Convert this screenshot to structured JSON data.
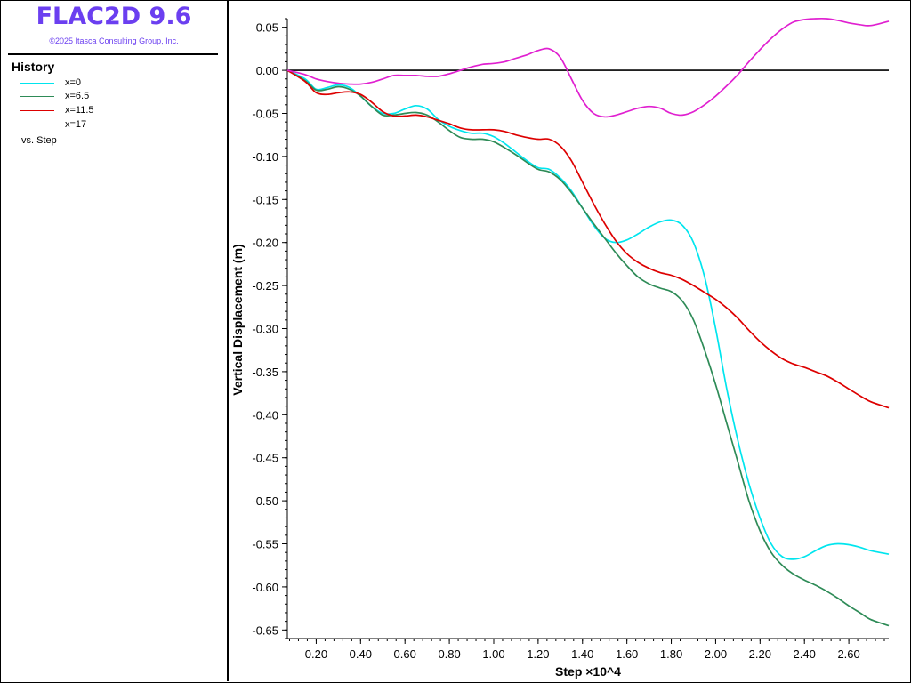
{
  "app": {
    "title": "FLAC2D 9.6",
    "copyright": "©2025 Itasca Consulting Group, Inc."
  },
  "legend": {
    "heading": "History",
    "items": [
      {
        "label": "x=0",
        "color": "#00e5ee"
      },
      {
        "label": "x=6.5",
        "color": "#2e8b57"
      },
      {
        "label": "x=11.5",
        "color": "#dd0000"
      },
      {
        "label": "x=17",
        "color": "#e020d0"
      }
    ],
    "vs_label": "vs. Step"
  },
  "chart_data": {
    "type": "line",
    "xlabel": "Step ×10^4",
    "ylabel": "Vertical Displacement (m)",
    "xlim": [
      0.07,
      2.78
    ],
    "ylim": [
      -0.66,
      0.06
    ],
    "xticks": [
      0.2,
      0.4,
      0.6,
      0.8,
      1.0,
      1.2,
      1.4,
      1.6,
      1.8,
      2.0,
      2.2,
      2.4,
      2.6
    ],
    "xtick_labels": [
      "0.20",
      "0.40",
      "0.60",
      "0.80",
      "1.00",
      "1.20",
      "1.40",
      "1.60",
      "1.80",
      "2.00",
      "2.20",
      "2.40",
      "2.60"
    ],
    "yticks": [
      0.05,
      0.0,
      -0.05,
      -0.1,
      -0.15,
      -0.2,
      -0.25,
      -0.3,
      -0.35,
      -0.4,
      -0.45,
      -0.5,
      -0.55,
      -0.6,
      -0.65
    ],
    "ytick_labels": [
      "0.05",
      "0.00",
      "-0.05",
      "-0.10",
      "-0.15",
      "-0.20",
      "-0.25",
      "-0.30",
      "-0.35",
      "-0.40",
      "-0.45",
      "-0.50",
      "-0.55",
      "-0.60",
      "-0.65"
    ],
    "zero_line": true,
    "grid": false,
    "series": [
      {
        "name": "x=0",
        "color": "#00e5ee",
        "x": [
          0.07,
          0.15,
          0.2,
          0.25,
          0.3,
          0.35,
          0.4,
          0.45,
          0.5,
          0.55,
          0.6,
          0.65,
          0.7,
          0.75,
          0.8,
          0.85,
          0.9,
          0.95,
          1.0,
          1.05,
          1.1,
          1.15,
          1.2,
          1.25,
          1.3,
          1.35,
          1.4,
          1.45,
          1.5,
          1.55,
          1.6,
          1.65,
          1.7,
          1.75,
          1.8,
          1.85,
          1.9,
          1.95,
          2.0,
          2.05,
          2.1,
          2.15,
          2.2,
          2.25,
          2.3,
          2.35,
          2.4,
          2.45,
          2.5,
          2.55,
          2.6,
          2.65,
          2.7,
          2.78
        ],
        "y": [
          0.0,
          -0.01,
          -0.022,
          -0.02,
          -0.017,
          -0.02,
          -0.03,
          -0.042,
          -0.05,
          -0.05,
          -0.045,
          -0.041,
          -0.045,
          -0.057,
          -0.065,
          -0.07,
          -0.073,
          -0.073,
          -0.077,
          -0.085,
          -0.095,
          -0.105,
          -0.113,
          -0.115,
          -0.125,
          -0.14,
          -0.16,
          -0.18,
          -0.195,
          -0.2,
          -0.197,
          -0.19,
          -0.182,
          -0.176,
          -0.174,
          -0.18,
          -0.2,
          -0.24,
          -0.3,
          -0.37,
          -0.43,
          -0.48,
          -0.52,
          -0.55,
          -0.565,
          -0.568,
          -0.565,
          -0.558,
          -0.552,
          -0.55,
          -0.551,
          -0.554,
          -0.558,
          -0.562
        ]
      },
      {
        "name": "x=6.5",
        "color": "#2e8b57",
        "x": [
          0.07,
          0.15,
          0.2,
          0.25,
          0.3,
          0.35,
          0.4,
          0.45,
          0.5,
          0.55,
          0.6,
          0.65,
          0.7,
          0.75,
          0.8,
          0.85,
          0.9,
          0.95,
          1.0,
          1.05,
          1.1,
          1.15,
          1.2,
          1.25,
          1.3,
          1.35,
          1.4,
          1.45,
          1.5,
          1.55,
          1.6,
          1.65,
          1.7,
          1.75,
          1.8,
          1.85,
          1.9,
          1.95,
          2.0,
          2.05,
          2.1,
          2.15,
          2.2,
          2.25,
          2.3,
          2.35,
          2.4,
          2.45,
          2.5,
          2.55,
          2.6,
          2.65,
          2.7,
          2.78
        ],
        "y": [
          0.0,
          -0.012,
          -0.023,
          -0.022,
          -0.019,
          -0.022,
          -0.03,
          -0.042,
          -0.052,
          -0.052,
          -0.05,
          -0.049,
          -0.052,
          -0.06,
          -0.07,
          -0.078,
          -0.08,
          -0.08,
          -0.083,
          -0.09,
          -0.098,
          -0.107,
          -0.115,
          -0.118,
          -0.127,
          -0.142,
          -0.16,
          -0.178,
          -0.195,
          -0.212,
          -0.227,
          -0.24,
          -0.248,
          -0.253,
          -0.257,
          -0.268,
          -0.29,
          -0.325,
          -0.365,
          -0.41,
          -0.455,
          -0.5,
          -0.535,
          -0.56,
          -0.575,
          -0.585,
          -0.592,
          -0.598,
          -0.605,
          -0.613,
          -0.622,
          -0.63,
          -0.638,
          -0.645
        ]
      },
      {
        "name": "x=11.5",
        "color": "#dd0000",
        "x": [
          0.07,
          0.15,
          0.2,
          0.25,
          0.3,
          0.35,
          0.4,
          0.45,
          0.5,
          0.55,
          0.6,
          0.65,
          0.7,
          0.75,
          0.8,
          0.85,
          0.9,
          0.95,
          1.0,
          1.05,
          1.1,
          1.15,
          1.2,
          1.25,
          1.3,
          1.35,
          1.4,
          1.45,
          1.5,
          1.55,
          1.6,
          1.65,
          1.7,
          1.75,
          1.8,
          1.85,
          1.9,
          1.95,
          2.0,
          2.05,
          2.1,
          2.15,
          2.2,
          2.25,
          2.3,
          2.35,
          2.4,
          2.45,
          2.5,
          2.55,
          2.6,
          2.65,
          2.7,
          2.78
        ],
        "y": [
          0.0,
          -0.013,
          -0.026,
          -0.028,
          -0.026,
          -0.025,
          -0.028,
          -0.037,
          -0.048,
          -0.053,
          -0.053,
          -0.052,
          -0.054,
          -0.058,
          -0.062,
          -0.067,
          -0.069,
          -0.069,
          -0.069,
          -0.071,
          -0.075,
          -0.078,
          -0.08,
          -0.08,
          -0.088,
          -0.105,
          -0.13,
          -0.155,
          -0.178,
          -0.198,
          -0.213,
          -0.223,
          -0.23,
          -0.235,
          -0.238,
          -0.243,
          -0.25,
          -0.258,
          -0.266,
          -0.276,
          -0.288,
          -0.302,
          -0.315,
          -0.326,
          -0.335,
          -0.341,
          -0.345,
          -0.35,
          -0.355,
          -0.362,
          -0.37,
          -0.378,
          -0.385,
          -0.392
        ]
      },
      {
        "name": "x=17",
        "color": "#e020d0",
        "x": [
          0.07,
          0.15,
          0.2,
          0.25,
          0.3,
          0.35,
          0.4,
          0.45,
          0.5,
          0.55,
          0.6,
          0.65,
          0.7,
          0.75,
          0.8,
          0.85,
          0.9,
          0.95,
          1.0,
          1.05,
          1.1,
          1.15,
          1.2,
          1.25,
          1.3,
          1.35,
          1.4,
          1.45,
          1.5,
          1.55,
          1.6,
          1.65,
          1.7,
          1.75,
          1.8,
          1.85,
          1.9,
          1.95,
          2.0,
          2.05,
          2.1,
          2.15,
          2.2,
          2.25,
          2.3,
          2.35,
          2.4,
          2.45,
          2.5,
          2.55,
          2.6,
          2.65,
          2.7,
          2.78
        ],
        "y": [
          0.0,
          -0.005,
          -0.01,
          -0.013,
          -0.015,
          -0.016,
          -0.016,
          -0.014,
          -0.01,
          -0.006,
          -0.006,
          -0.006,
          -0.007,
          -0.007,
          -0.004,
          0.0,
          0.004,
          0.007,
          0.008,
          0.01,
          0.014,
          0.018,
          0.023,
          0.025,
          0.015,
          -0.01,
          -0.035,
          -0.05,
          -0.054,
          -0.052,
          -0.048,
          -0.044,
          -0.042,
          -0.044,
          -0.05,
          -0.052,
          -0.048,
          -0.04,
          -0.03,
          -0.018,
          -0.005,
          0.01,
          0.024,
          0.037,
          0.048,
          0.056,
          0.059,
          0.06,
          0.06,
          0.058,
          0.055,
          0.053,
          0.052,
          0.057
        ]
      }
    ]
  }
}
